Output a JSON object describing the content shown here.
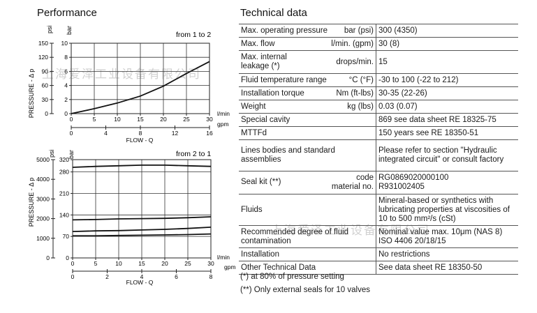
{
  "performance": {
    "title": "Performance",
    "chart1": {
      "note": "from 1 to 2",
      "psi_unit": "psi",
      "bar_unit": "bar",
      "ylabel": "PRESSURE - Δ p",
      "xlabel": "FLOW - Q",
      "x_unit_top": "l/min",
      "x_unit_bottom": "gpm",
      "psi_ticks": [
        "150",
        "120",
        "90",
        "60",
        "30",
        "0"
      ],
      "bar_ticks": [
        "10",
        "8",
        "6",
        "4",
        "2",
        "0"
      ],
      "x_top_ticks": [
        "0",
        "5",
        "10",
        "15",
        "20",
        "25",
        "30"
      ],
      "x_bottom_ticks": [
        "0",
        "4",
        "8",
        "12",
        "16"
      ]
    },
    "chart2": {
      "note": "from 2 to 1",
      "psi_unit": "psi",
      "bar_unit": "bar",
      "ylabel": "PRESSURE - Δ p",
      "xlabel": "FLOW - Q",
      "x_unit_top": "l/min",
      "x_unit_bottom": "gpm",
      "psi_ticks": [
        "5000",
        "4000",
        "3000",
        "2000",
        "1000",
        "0"
      ],
      "bar_ticks": [
        "320",
        "280",
        "210",
        "140",
        "70",
        "0"
      ],
      "x_top_ticks": [
        "0",
        "5",
        "10",
        "15",
        "20",
        "25",
        "30"
      ],
      "x_bottom_ticks": [
        "0",
        "2",
        "4",
        "6",
        "8"
      ]
    }
  },
  "chart_data": [
    {
      "type": "line",
      "note": "from 1 to 2",
      "xlabel": "FLOW - Q",
      "ylabel": "PRESSURE - Δ p",
      "x_unit": "l/min",
      "y_unit": "bar",
      "xlim": [
        0,
        30
      ],
      "ylim": [
        0,
        10
      ],
      "grid": true,
      "series": [
        {
          "x": [
            0,
            5,
            10,
            15,
            20,
            25,
            30
          ],
          "y": [
            0,
            0.7,
            1.5,
            2.5,
            3.9,
            5.7,
            7.4
          ]
        }
      ]
    },
    {
      "type": "line",
      "note": "from 2 to 1",
      "xlabel": "FLOW - Q",
      "ylabel": "PRESSURE - Δ p",
      "x_unit": "l/min",
      "y_unit": "bar",
      "xlim": [
        0,
        30
      ],
      "ylim": [
        0,
        320
      ],
      "grid": true,
      "series": [
        {
          "x": [
            0,
            5,
            10,
            15,
            20,
            25,
            30
          ],
          "y": [
            295,
            298,
            300,
            302,
            302,
            300,
            298
          ]
        },
        {
          "x": [
            0,
            5,
            10,
            15,
            20,
            25,
            30
          ],
          "y": [
            124,
            125,
            127,
            128,
            129,
            131,
            134
          ]
        },
        {
          "x": [
            0,
            5,
            10,
            15,
            20,
            25,
            30
          ],
          "y": [
            86,
            88,
            89,
            91,
            93,
            96,
            100
          ]
        },
        {
          "x": [
            0,
            5,
            10,
            15,
            20,
            25,
            30
          ],
          "y": [
            72,
            72,
            73,
            74,
            75,
            76,
            78
          ]
        }
      ]
    }
  ],
  "technical": {
    "title": "Technical data",
    "rows": [
      {
        "label": "Max. operating pressure",
        "unit": "bar (psi)",
        "value": "300 (4350)"
      },
      {
        "label": "Max. flow",
        "unit": "l/min. (gpm)",
        "value": "30 (8)"
      },
      {
        "label": "Max. internal leakage (*)",
        "unit": "drops/min.",
        "value": "15"
      },
      {
        "label": "Fluid temperature range",
        "unit": "°C (°F)",
        "value": "-30 to 100 (-22 to 212)"
      },
      {
        "label": "Installation torque",
        "unit": "Nm (ft-lbs)",
        "value": "30-35 (22-26)"
      },
      {
        "label": "Weight",
        "unit": "kg (lbs)",
        "value": "0.03 (0.07)"
      },
      {
        "label": "Special cavity",
        "unit": "",
        "value": "869 see data sheet RE 18325-75"
      },
      {
        "label": "MTTFd",
        "unit": "",
        "value": "150 years see RE 18350-51"
      },
      {
        "label": "Lines bodies and standard assemblies",
        "unit": "",
        "value": "Please refer to section \"Hydraulic integrated circuit\" or consult factory"
      },
      {
        "label": "Seal kit (**)",
        "unit_code": "code",
        "unit_material": "material no.",
        "value_code": "RG0869020000100",
        "value_material": "R931002405"
      },
      {
        "label": "Fluids",
        "unit": "",
        "value": "Mineral-based or synthetics with lubricating properties at viscosities of 10 to 500 mm²/s (cSt)"
      },
      {
        "label": "Recommended degree of fluid contamination",
        "unit": "",
        "value": "Nominal value max. 10μm (NAS 8) ISO 4406 20/18/15"
      },
      {
        "label": "Installation",
        "unit": "",
        "value": "No restrictions"
      },
      {
        "label": "Other Technical Data",
        "unit": "",
        "value": "See data sheet RE 18350-50"
      }
    ],
    "footnote1": "(*) at 80% of pressure setting",
    "footnote2": "(**) Only external seals for 10 valves"
  },
  "watermark1": "上海爱泽工业设备有限公司",
  "watermark2": "上海爱泽工业设备有限公司"
}
